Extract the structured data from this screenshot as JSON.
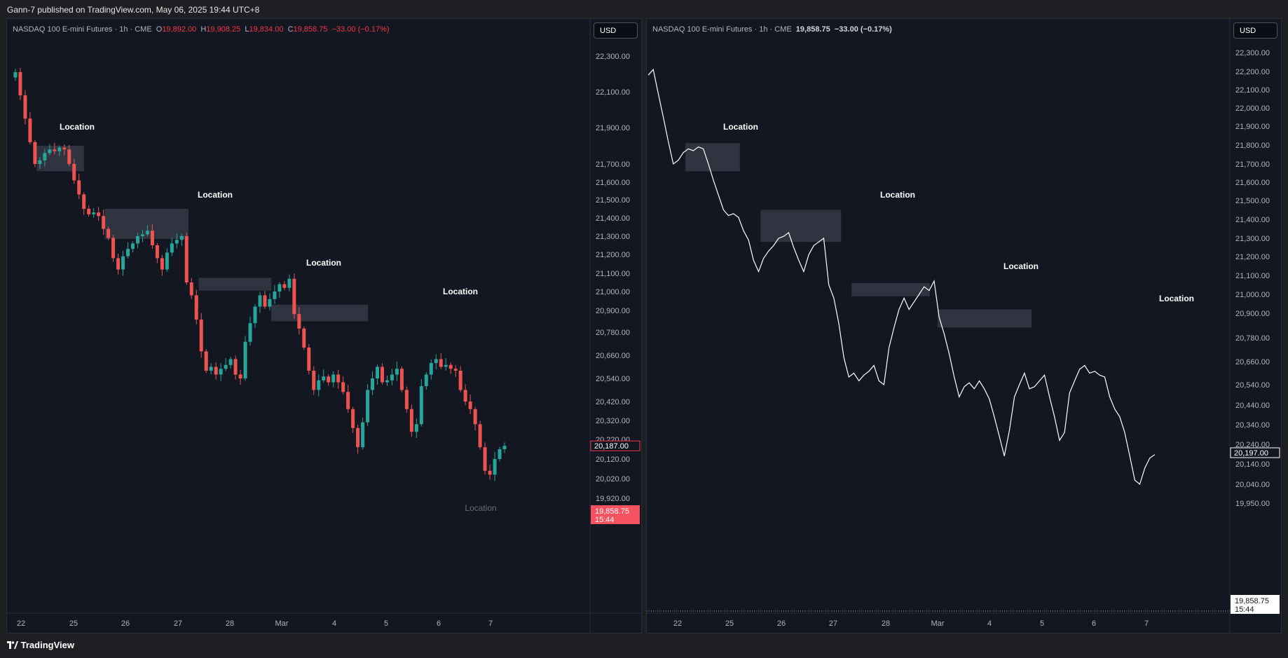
{
  "header": {
    "published": "Gann-7 published on TradingView.com, May 06, 2025 19:44 UTC+8"
  },
  "footer": {
    "brand": "TradingView"
  },
  "colors": {
    "up": "#26a69a",
    "down": "#ef5350",
    "line": "#ffffff",
    "zone": "#363a45",
    "bg": "#131722"
  },
  "chart_data": [
    {
      "type": "candlestick",
      "symbol": "NASDAQ 100 E-mini Futures · 1h · CME",
      "ohlc": {
        "o": "19,892.00",
        "h": "19,908.25",
        "l": "19,834.00",
        "c": "19,858.75",
        "chg": "−33.00 (−0.17%)"
      },
      "currency": "USD",
      "price_labels": [
        "22,300.00",
        "22,100.00",
        "21,900.00",
        "21,700.00",
        "21,600.00",
        "21,500.00",
        "21,400.00",
        "21,300.00",
        "21,200.00",
        "21,100.00",
        "21,000.00",
        "20,900.00",
        "20,780.00",
        "20,660.00",
        "20,540.00",
        "20,420.00",
        "20,320.00",
        "20,220.00",
        "20,120.00",
        "20,020.00",
        "19,920.00"
      ],
      "x_labels": [
        "22",
        "25",
        "26",
        "27",
        "28",
        "Mar",
        "4",
        "5",
        "6",
        "7"
      ],
      "last_price": "20,187.00",
      "current_price": "19,858.75",
      "countdown": "15:44",
      "annotation_labels": [
        "Location",
        "Location",
        "Location",
        "Location",
        "Location"
      ],
      "zones": [
        {
          "label": "Location",
          "t_from": 0.3,
          "t_to": 1.2,
          "p_low": 21660,
          "p_high": 21800
        },
        {
          "label": "Location",
          "t_from": 1.6,
          "t_to": 3.2,
          "p_low": 21285,
          "p_high": 21450
        },
        {
          "label": "Location",
          "t_from": 3.4,
          "t_to": 4.8,
          "p_low": 21005,
          "p_high": 21075
        },
        {
          "label": "Location",
          "t_from": 4.8,
          "t_to": 6.65,
          "p_low": 20840,
          "p_high": 20930
        }
      ],
      "series": [
        22180,
        22210,
        22080,
        21950,
        21820,
        21700,
        21720,
        21760,
        21780,
        21770,
        21790,
        21780,
        21700,
        21610,
        21530,
        21450,
        21420,
        21430,
        21410,
        21340,
        21290,
        21180,
        21120,
        21190,
        21230,
        21260,
        21300,
        21310,
        21330,
        21250,
        21180,
        21120,
        21210,
        21260,
        21280,
        21300,
        21050,
        20980,
        20850,
        20680,
        20580,
        20600,
        20560,
        20590,
        20610,
        20640,
        20560,
        20540,
        20730,
        20830,
        20920,
        20980,
        20920,
        20960,
        21000,
        21040,
        21020,
        21070,
        20880,
        20800,
        20700,
        20580,
        20480,
        20530,
        20550,
        20520,
        20560,
        20520,
        20470,
        20380,
        20280,
        20180,
        20310,
        20480,
        20540,
        20600,
        20520,
        20530,
        20560,
        20590,
        20480,
        20380,
        20260,
        20300,
        20500,
        20560,
        20620,
        20640,
        20600,
        20610,
        20590,
        20580,
        20480,
        20420,
        20380,
        20300,
        20180,
        20060,
        20040,
        20120,
        20170,
        20187
      ]
    },
    {
      "type": "line",
      "symbol": "NASDAQ 100 E-mini Futures · 1h · CME",
      "last": "19,858.75",
      "chg": "−33.00 (−0.17%)",
      "currency": "USD",
      "price_labels": [
        "22,300.00",
        "22,200.00",
        "22,100.00",
        "22,000.00",
        "21,900.00",
        "21,800.00",
        "21,700.00",
        "21,600.00",
        "21,500.00",
        "21,400.00",
        "21,300.00",
        "21,200.00",
        "21,100.00",
        "21,000.00",
        "20,900.00",
        "20,780.00",
        "20,660.00",
        "20,540.00",
        "20,440.00",
        "20,340.00",
        "20,240.00",
        "20,140.00",
        "20,040.00",
        "19,950.00"
      ],
      "x_labels": [
        "22",
        "25",
        "26",
        "27",
        "28",
        "Mar",
        "4",
        "5",
        "6",
        "7"
      ],
      "last_price": "20,197.00",
      "current_price": "19,858.75",
      "countdown": "15:44",
      "annotation_labels": [
        "Location",
        "Location",
        "Location",
        "Location"
      ],
      "zones": [
        {
          "label": "Location",
          "t_from": 0.15,
          "t_to": 1.2,
          "p_low": 21660,
          "p_high": 21810
        },
        {
          "label": "Location",
          "t_from": 1.6,
          "t_to": 3.15,
          "p_low": 21280,
          "p_high": 21450
        },
        {
          "label": "Location",
          "t_from": 3.35,
          "t_to": 4.85,
          "p_low": 20990,
          "p_high": 21060
        },
        {
          "label": "Location",
          "t_from": 5.0,
          "t_to": 6.8,
          "p_low": 20830,
          "p_high": 20920
        }
      ]
    }
  ]
}
